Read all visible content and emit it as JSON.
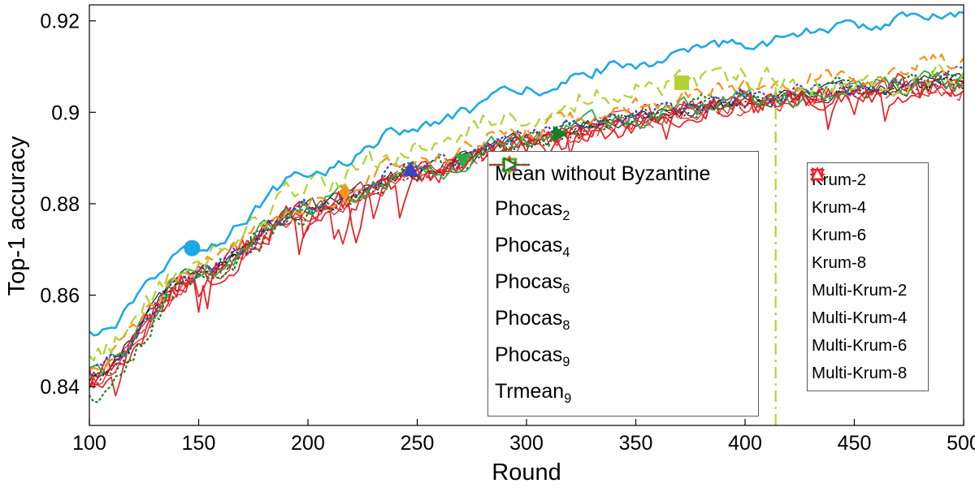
{
  "chart_data": {
    "type": "line",
    "title": "",
    "xlabel": "Round",
    "ylabel": "Top-1 accuracy",
    "xlim": [
      100,
      500
    ],
    "ylim": [
      0.8315,
      0.9235
    ],
    "xticks": [
      100,
      150,
      200,
      250,
      300,
      350,
      400,
      450,
      500
    ],
    "xtick_labels": [
      "100",
      "150",
      "200",
      "250",
      "300",
      "350",
      "400",
      "450",
      "500"
    ],
    "yticks": [
      0.84,
      0.86,
      0.88,
      0.9,
      0.92
    ],
    "ytick_labels": [
      "0.84",
      "0.86",
      "0.88",
      "0.9",
      "0.92"
    ],
    "grid": false,
    "legend_positions": {
      "legend1": "inside center-bottom",
      "legend2": "inside right"
    },
    "vline": {
      "x": 414,
      "y0": 0.8315,
      "y1": 0.9055,
      "color": "#b3d335",
      "style": "dashdot",
      "width": 2.2
    },
    "anchor_x": [
      100,
      150,
      200,
      250,
      300,
      350,
      400,
      450,
      500
    ],
    "series": [
      {
        "name": "mean-without-byzantine",
        "label_base": "Mean without Byzantine",
        "label_sub": "",
        "legend": 1,
        "color": "#1fa8e4",
        "style": "solid",
        "width": 2.6,
        "marker": "circle",
        "marker_x": 147,
        "marker_size": 9.5,
        "noise": 0.0011,
        "spiky": false,
        "z": 15,
        "anchors": [
          0.851,
          0.8705,
          0.8865,
          0.8968,
          0.9048,
          0.9108,
          0.9152,
          0.9188,
          0.9222
        ]
      },
      {
        "name": "phocas-2",
        "label_base": "Phocas",
        "label_sub": "2",
        "legend": 1,
        "color": "#b3d335",
        "style": "dashed",
        "width": 2.3,
        "marker": "square",
        "marker_x": 371,
        "marker_size": 8.5,
        "noise": 0.0024,
        "spiky": false,
        "z": 14,
        "anchors": [
          0.8465,
          0.868,
          0.8835,
          0.8925,
          0.9,
          0.9058,
          0.9075,
          0.9055,
          0.9088
        ]
      },
      {
        "name": "phocas-4",
        "label_base": "Phocas",
        "label_sub": "4",
        "legend": 1,
        "color": "#f7941e",
        "style": "dashed",
        "width": 2.3,
        "marker": "diamond",
        "marker_x": 217,
        "marker_size": 8,
        "noise": 0.0018,
        "spiky": false,
        "z": 13,
        "anchors": [
          0.8445,
          0.8665,
          0.8802,
          0.8888,
          0.8962,
          0.9012,
          0.9055,
          0.9085,
          0.9115
        ]
      },
      {
        "name": "phocas-6",
        "label_base": "Phocas",
        "label_sub": "6",
        "legend": 1,
        "color": "#3a41c6",
        "style": "dotted",
        "width": 2.2,
        "marker": "triangle-up",
        "marker_x": 247,
        "marker_size": 9,
        "noise": 0.0016,
        "spiky": false,
        "z": 12,
        "anchors": [
          0.8432,
          0.8652,
          0.8795,
          0.8875,
          0.8948,
          0.8998,
          0.9032,
          0.9058,
          0.9082
        ]
      },
      {
        "name": "phocas-8",
        "label_base": "Phocas",
        "label_sub": "8",
        "legend": 1,
        "color": "#27ae47",
        "style": "solid",
        "width": 1.8,
        "marker": "triangle-down",
        "marker_x": 271,
        "marker_size": 9,
        "noise": 0.002,
        "spiky": false,
        "z": 11,
        "anchors": [
          0.8425,
          0.8648,
          0.8792,
          0.8868,
          0.894,
          0.899,
          0.9025,
          0.905,
          0.9068
        ]
      },
      {
        "name": "phocas-9",
        "label_base": "Phocas",
        "label_sub": "9",
        "legend": 1,
        "color": "#ea2127",
        "style": "solid",
        "width": 1.8,
        "marker": "star",
        "marker_x": null,
        "marker_size": 11,
        "noise": 0.0028,
        "spiky": true,
        "z": 10,
        "anchors": [
          0.8412,
          0.864,
          0.8785,
          0.886,
          0.8933,
          0.8983,
          0.9018,
          0.9043,
          0.9058
        ]
      },
      {
        "name": "trmean-9",
        "label_base": "Trmean",
        "label_sub": "9",
        "legend": 1,
        "color": "#15801f",
        "style": "dotted",
        "width": 2.2,
        "marker": "triangle-right",
        "marker_x": 315,
        "marker_size": 9,
        "noise": 0.002,
        "spiky": false,
        "z": 9,
        "anchors": [
          0.838,
          0.8632,
          0.8782,
          0.8868,
          0.8942,
          0.8992,
          0.9028,
          0.9055,
          0.9072
        ]
      },
      {
        "name": "krum-2",
        "label_base": "Krum-2",
        "label_sub": "",
        "legend": 2,
        "color": "#1a1a1a",
        "style": "dotted",
        "width": 1.5,
        "marker": "triangle-left",
        "marker_x": null,
        "marker_size": 9,
        "noise": 0.0014,
        "spiky": false,
        "z": 1,
        "anchors": [
          0.8415,
          0.8645,
          0.8788,
          0.8866,
          0.8937,
          0.8988,
          0.9022,
          0.9048,
          0.9062
        ]
      },
      {
        "name": "krum-4",
        "label_base": "Krum-4",
        "label_sub": "",
        "legend": 2,
        "color": "#1a1a1a",
        "style": "solid",
        "width": 1.2,
        "marker": "triangle-down",
        "marker_x": null,
        "marker_size": 9,
        "noise": 0.0014,
        "spiky": false,
        "z": 2,
        "anchors": [
          0.8422,
          0.865,
          0.879,
          0.887,
          0.894,
          0.899,
          0.9025,
          0.905,
          0.9065
        ]
      },
      {
        "name": "krum-6",
        "label_base": "Krum-6",
        "label_sub": "",
        "legend": 2,
        "color": "#1a1a1a",
        "style": "dotted",
        "width": 1.5,
        "marker": "triangle-right",
        "marker_x": null,
        "marker_size": 9,
        "noise": 0.0014,
        "spiky": false,
        "z": 3,
        "anchors": [
          0.8418,
          0.8648,
          0.8786,
          0.8864,
          0.8936,
          0.8986,
          0.902,
          0.9046,
          0.906
        ]
      },
      {
        "name": "krum-8",
        "label_base": "Krum-8",
        "label_sub": "",
        "legend": 2,
        "color": "#1a1a1a",
        "style": "solid",
        "width": 1.2,
        "marker": "triangle-up",
        "marker_x": null,
        "marker_size": 9,
        "noise": 0.0014,
        "spiky": false,
        "z": 4,
        "anchors": [
          0.842,
          0.8652,
          0.8792,
          0.8868,
          0.8938,
          0.8988,
          0.9023,
          0.9049,
          0.9063
        ]
      },
      {
        "name": "multi-krum-2",
        "label_base": "Multi-Krum-2",
        "label_sub": "",
        "legend": 2,
        "color": "#ea2127",
        "style": "solid",
        "width": 1.7,
        "marker": "triangle-left",
        "marker_x": null,
        "marker_size": 9,
        "noise": 0.002,
        "spiky": true,
        "z": 5,
        "anchors": [
          0.8405,
          0.8638,
          0.878,
          0.8858,
          0.893,
          0.898,
          0.9015,
          0.904,
          0.9055
        ]
      },
      {
        "name": "multi-krum-4",
        "label_base": "Multi-Krum-4",
        "label_sub": "",
        "legend": 2,
        "color": "#ea2127",
        "style": "solid",
        "width": 1.3,
        "marker": "triangle-down",
        "marker_x": null,
        "marker_size": 9,
        "noise": 0.0018,
        "spiky": false,
        "z": 6,
        "anchors": [
          0.841,
          0.8642,
          0.8784,
          0.8862,
          0.8933,
          0.8983,
          0.9018,
          0.9043,
          0.9058
        ]
      },
      {
        "name": "multi-krum-6",
        "label_base": "Multi-Krum-6",
        "label_sub": "",
        "legend": 2,
        "color": "#ea2127",
        "style": "dashed",
        "width": 1.3,
        "marker": "triangle-right",
        "marker_x": null,
        "marker_size": 9,
        "noise": 0.0018,
        "spiky": false,
        "z": 7,
        "anchors": [
          0.8408,
          0.864,
          0.8782,
          0.886,
          0.8931,
          0.8981,
          0.9016,
          0.9041,
          0.9056
        ]
      },
      {
        "name": "multi-krum-8",
        "label_base": "Multi-Krum-8",
        "label_sub": "",
        "legend": 2,
        "color": "#ea2127",
        "style": "solid",
        "width": 1.3,
        "marker": "triangle-up",
        "marker_x": null,
        "marker_size": 9,
        "noise": 0.0018,
        "spiky": false,
        "z": 8,
        "anchors": [
          0.8412,
          0.8644,
          0.8786,
          0.8863,
          0.8934,
          0.8984,
          0.9019,
          0.9044,
          0.9059
        ]
      }
    ]
  }
}
